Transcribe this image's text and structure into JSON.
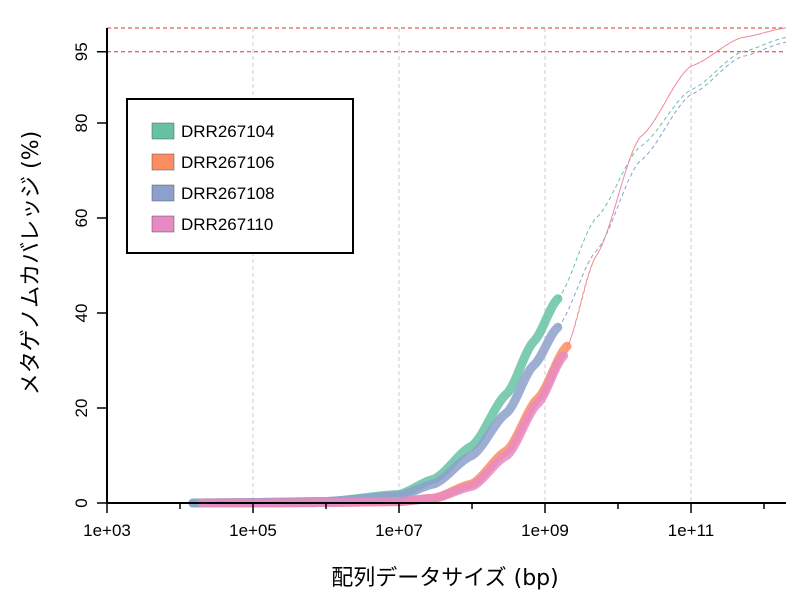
{
  "chart_data": {
    "type": "line",
    "xlabel": "配列データサイズ (bp)",
    "ylabel": "メタゲノムカバレッジ (%)",
    "x_scale": "log10",
    "xlim": [
      1000,
      2000000000000
    ],
    "ylim": [
      0,
      100
    ],
    "x_tick_labels": [
      "1e+03",
      "1e+05",
      "1e+07",
      "1e+09",
      "1e+11"
    ],
    "x_tick_values": [
      1000,
      100000,
      10000000,
      1000000000,
      100000000000
    ],
    "y_tick_labels": [
      "0",
      "20",
      "40",
      "60",
      "80",
      "95"
    ],
    "y_tick_values": [
      0,
      20,
      40,
      60,
      80,
      95
    ],
    "reference_lines_y": [
      95,
      100
    ],
    "grid_x": "dashed at major x ticks",
    "legend_position": "top-left",
    "series": [
      {
        "name": "DRR267104",
        "color": "#66c2a5",
        "observed": [
          [
            15000,
            0
          ],
          [
            100000,
            0.1
          ],
          [
            1000000,
            0.3
          ],
          [
            10000000,
            1.8
          ],
          [
            30000000,
            5
          ],
          [
            100000000,
            12
          ],
          [
            300000000,
            23
          ],
          [
            700000000,
            34
          ],
          [
            1500000000,
            43
          ]
        ],
        "extrapolated": [
          [
            1500000000,
            43
          ],
          [
            5000000000,
            60
          ],
          [
            20000000000,
            75
          ],
          [
            100000000000,
            87
          ],
          [
            500000000000,
            95
          ],
          [
            2000000000000,
            98
          ]
        ]
      },
      {
        "name": "DRR267106",
        "color": "#fc8d62",
        "observed": [
          [
            20000,
            0
          ],
          [
            100000,
            0
          ],
          [
            1000000,
            0.1
          ],
          [
            10000000,
            0.3
          ],
          [
            30000000,
            1
          ],
          [
            100000000,
            4
          ],
          [
            300000000,
            11
          ],
          [
            800000000,
            22
          ],
          [
            2000000000,
            33
          ]
        ],
        "extrapolated": [
          [
            2000000000,
            33
          ],
          [
            5000000000,
            52
          ],
          [
            20000000000,
            77
          ],
          [
            100000000000,
            92
          ],
          [
            500000000000,
            98
          ],
          [
            2000000000000,
            100
          ]
        ]
      },
      {
        "name": "DRR267108",
        "color": "#8da0cb",
        "observed": [
          [
            15000,
            0
          ],
          [
            100000,
            0.1
          ],
          [
            1000000,
            0.3
          ],
          [
            10000000,
            1.5
          ],
          [
            30000000,
            4
          ],
          [
            100000000,
            10
          ],
          [
            300000000,
            19
          ],
          [
            700000000,
            29
          ],
          [
            1500000000,
            37
          ]
        ],
        "extrapolated": [
          [
            1500000000,
            37
          ],
          [
            5000000000,
            53
          ],
          [
            20000000000,
            72
          ],
          [
            100000000000,
            86
          ],
          [
            500000000000,
            94
          ],
          [
            2000000000000,
            97
          ]
        ]
      },
      {
        "name": "DRR267110",
        "color": "#e78ac3",
        "observed": [
          [
            20000,
            0
          ],
          [
            100000,
            0
          ],
          [
            1000000,
            0.1
          ],
          [
            10000000,
            0.3
          ],
          [
            30000000,
            1
          ],
          [
            100000000,
            3.5
          ],
          [
            300000000,
            10
          ],
          [
            800000000,
            21
          ],
          [
            1800000000,
            31
          ]
        ],
        "extrapolated": [
          [
            1800000000,
            31
          ],
          [
            5000000000,
            52
          ],
          [
            20000000000,
            77
          ],
          [
            100000000000,
            92
          ],
          [
            500000000000,
            98
          ],
          [
            2000000000000,
            100
          ]
        ]
      }
    ]
  }
}
